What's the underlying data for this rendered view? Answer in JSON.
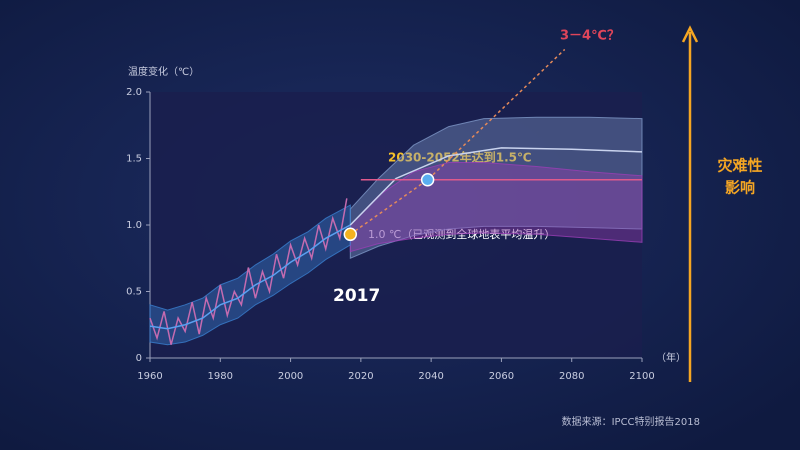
{
  "chart_data": {
    "type": "line",
    "y_label": "温度变化（℃）",
    "x_unit": "（年）",
    "xlim": [
      1960,
      2100
    ],
    "xticks": [
      1960,
      1980,
      2000,
      2020,
      2040,
      2060,
      2080,
      2100
    ],
    "ylim": [
      0,
      2
    ],
    "yticks": [
      0,
      0.5,
      {
        "value": 1,
        "label": "1.0"
      },
      1.5,
      {
        "value": 2,
        "label": "2.0"
      }
    ],
    "bands": [
      {
        "color": "#7f98c8",
        "x": [
          2017,
          2025,
          2035,
          2045,
          2055,
          2070,
          2085,
          2100
        ],
        "upper": [
          1.12,
          1.35,
          1.6,
          1.74,
          1.8,
          1.81,
          1.81,
          1.8
        ],
        "lower": [
          0.75,
          0.84,
          0.92,
          0.97,
          0.99,
          0.99,
          0.98,
          0.97
        ]
      },
      {
        "color": "#9a3fb5",
        "x": [
          2017,
          2025,
          2035,
          2045,
          2055,
          2070,
          2085,
          2100
        ],
        "upper": [
          1.0,
          1.22,
          1.4,
          1.47,
          1.47,
          1.44,
          1.4,
          1.37
        ],
        "lower": [
          0.8,
          0.86,
          0.9,
          0.93,
          0.94,
          0.93,
          0.9,
          0.87
        ]
      },
      {
        "color": "#3a7fd0",
        "x": [
          1960,
          1965,
          1970,
          1975,
          1980,
          1985,
          1990,
          1995,
          2000,
          2005,
          2010,
          2017
        ],
        "upper": [
          0.4,
          0.36,
          0.4,
          0.45,
          0.55,
          0.6,
          0.7,
          0.78,
          0.88,
          0.95,
          1.05,
          1.15
        ],
        "lower": [
          0.12,
          0.1,
          0.12,
          0.17,
          0.25,
          0.3,
          0.4,
          0.47,
          0.56,
          0.64,
          0.74,
          0.85
        ]
      }
    ],
    "series": [
      {
        "color": "#c46bb0",
        "x": [
          1960,
          1962,
          1964,
          1966,
          1968,
          1970,
          1972,
          1974,
          1976,
          1978,
          1980,
          1982,
          1984,
          1986,
          1988,
          1990,
          1992,
          1994,
          1996,
          1998,
          2000,
          2002,
          2004,
          2006,
          2008,
          2010,
          2012,
          2014,
          2016
        ],
        "values": [
          0.3,
          0.15,
          0.35,
          0.1,
          0.3,
          0.2,
          0.42,
          0.18,
          0.45,
          0.3,
          0.55,
          0.32,
          0.5,
          0.4,
          0.68,
          0.45,
          0.65,
          0.5,
          0.78,
          0.6,
          0.85,
          0.7,
          0.9,
          0.75,
          1.0,
          0.82,
          1.05,
          0.9,
          1.2
        ]
      },
      {
        "color": "#5aa0f0",
        "x": [
          1960,
          1965,
          1970,
          1975,
          1980,
          1985,
          1990,
          1995,
          2000,
          2005,
          2010,
          2017
        ],
        "values": [
          0.24,
          0.22,
          0.25,
          0.3,
          0.4,
          0.45,
          0.55,
          0.62,
          0.72,
          0.8,
          0.9,
          1.0
        ]
      },
      {
        "color": "#c9d3ee",
        "x": [
          2017,
          2030,
          2045,
          2060,
          2080,
          2100
        ],
        "values": [
          1.0,
          1.35,
          1.52,
          1.58,
          1.57,
          1.55
        ]
      },
      {
        "color": "#e05a8c",
        "x": [
          2020,
          2100
        ],
        "values": [
          1.34,
          1.34
        ]
      },
      {
        "color": "#e58a5a",
        "dash": true,
        "x": [
          2017,
          2039,
          2078
        ],
        "values": [
          0.93,
          1.34,
          2.32
        ]
      }
    ],
    "points": [
      {
        "color": "#f5b21f",
        "x": 2017,
        "value": 0.93
      },
      {
        "color": "#5aaef0",
        "x": 2039,
        "value": 1.34
      }
    ],
    "annotations": {
      "top": "3－4℃？",
      "target": "2030-2052年达到1.5℃",
      "observed": "1.0 ℃（已观测到全球地表平均温升）",
      "year": "2017",
      "impact": [
        "灾难性",
        "影响"
      ]
    },
    "source": "数据来源：IPCC特别报告2018"
  }
}
